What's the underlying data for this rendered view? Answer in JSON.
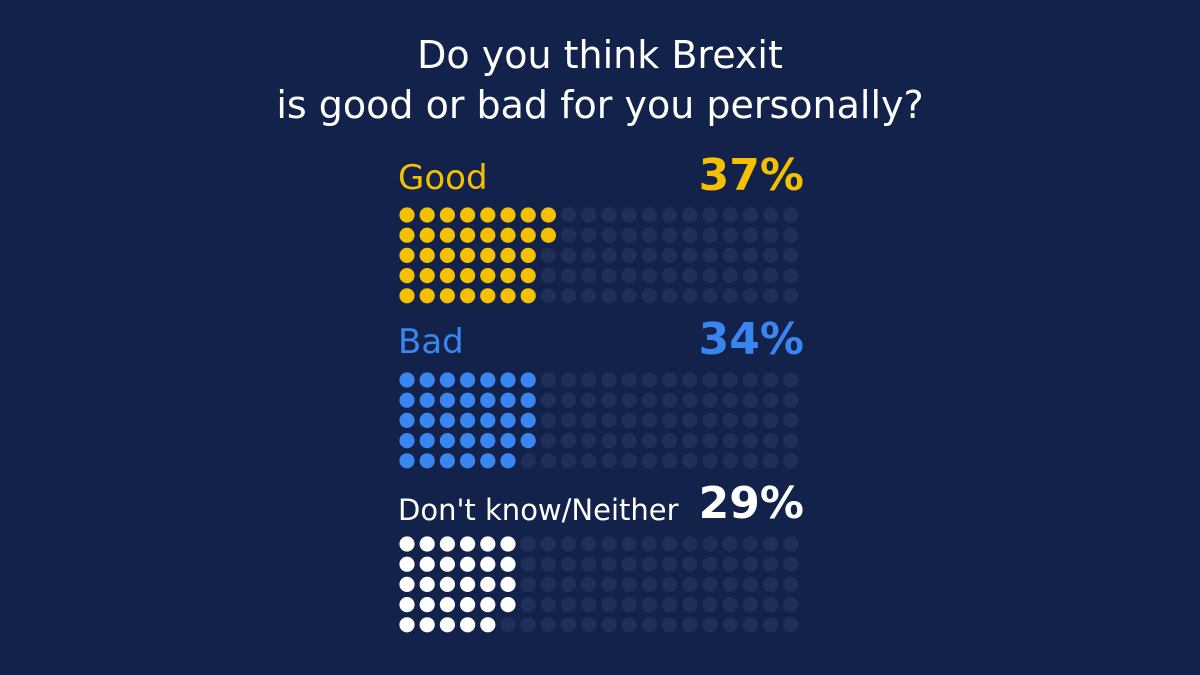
{
  "chart_data": {
    "type": "waffle",
    "title_lines": [
      "Do you think Brexit",
      "is good or bad for you personally?"
    ],
    "grid": {
      "rows": 5,
      "cols": 20,
      "total": 100
    },
    "empty_color": "#1f2f5a",
    "series": [
      {
        "label": "Good",
        "value": 37,
        "value_label": "37%",
        "color": "#f5c000"
      },
      {
        "label": "Bad",
        "value": 34,
        "value_label": "34%",
        "color": "#3a86f0"
      },
      {
        "label": "Don't know/Neither",
        "value": 29,
        "value_label": "29%",
        "color": "#ffffff"
      }
    ]
  }
}
